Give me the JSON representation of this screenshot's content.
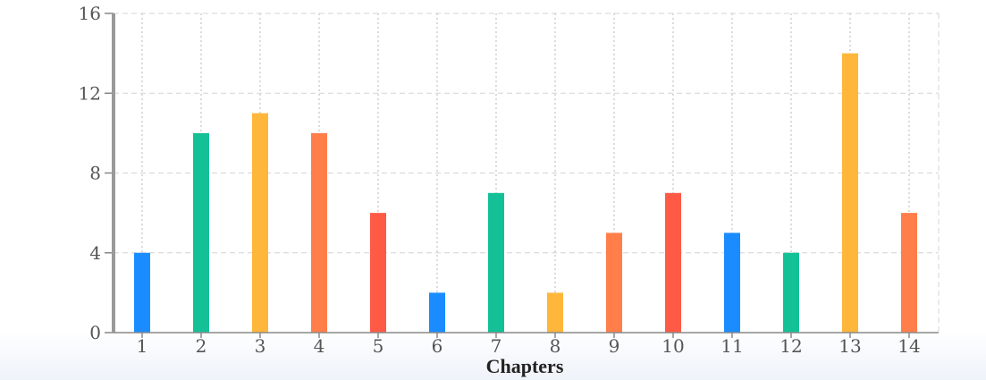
{
  "chart_data": {
    "type": "bar",
    "title": "",
    "xlabel": "Chapters",
    "ylabel": "",
    "categories": [
      "1",
      "2",
      "3",
      "4",
      "5",
      "6",
      "7",
      "8",
      "9",
      "10",
      "11",
      "12",
      "13",
      "14"
    ],
    "values": [
      4,
      10,
      11,
      10,
      6,
      2,
      7,
      2,
      5,
      7,
      5,
      4,
      14,
      6
    ],
    "bar_colors": [
      "#1a8cff",
      "#14c196",
      "#ffb73b",
      "#ff7e4a",
      "#ff5a45",
      "#1a8cff",
      "#14c196",
      "#ffb73b",
      "#ff7e4a",
      "#ff5a45",
      "#1a8cff",
      "#14c196",
      "#ffb73b",
      "#ff7e4a"
    ],
    "ylim": [
      0,
      16
    ],
    "yticks": [
      0,
      4,
      8,
      12,
      16
    ],
    "grid": true,
    "legend": "none"
  }
}
